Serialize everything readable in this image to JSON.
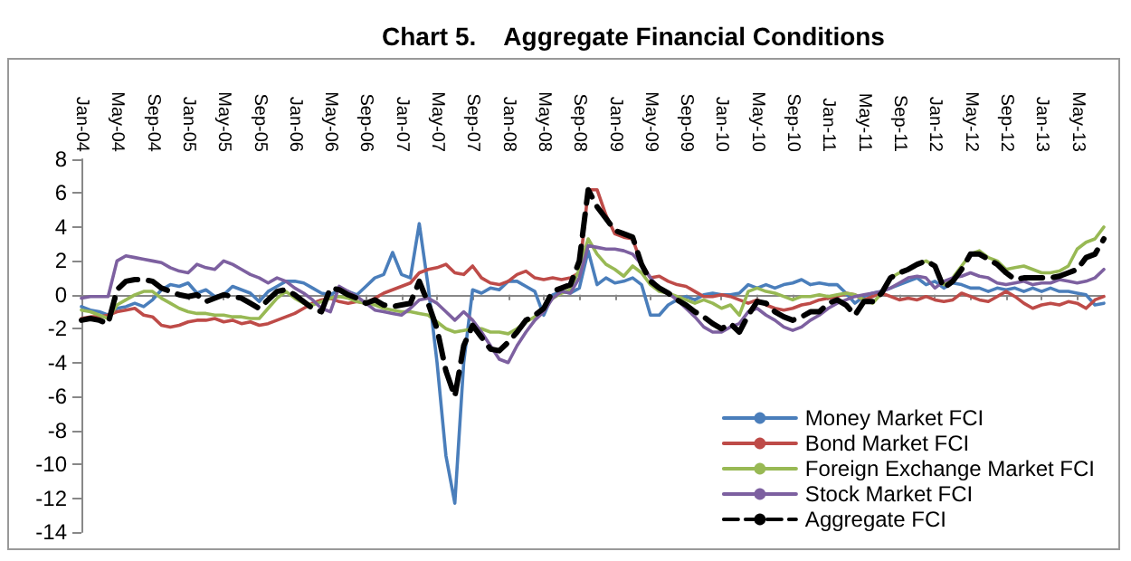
{
  "chart_data": {
    "type": "line",
    "title": "Chart 5.    Aggregate Financial Conditions",
    "categories": [
      "Jan-04",
      null,
      null,
      null,
      "May-04",
      null,
      null,
      null,
      "Sep-04",
      null,
      null,
      null,
      "Jan-05",
      null,
      null,
      null,
      "May-05",
      null,
      null,
      null,
      "Sep-05",
      null,
      null,
      null,
      "Jan-06",
      null,
      null,
      null,
      "May-06",
      null,
      null,
      null,
      "Sep-06",
      null,
      null,
      null,
      "Jan-07",
      null,
      null,
      null,
      "May-07",
      null,
      null,
      null,
      "Sep-07",
      null,
      null,
      null,
      "Jan-08",
      null,
      null,
      null,
      "May-08",
      null,
      null,
      null,
      "Sep-08",
      null,
      null,
      null,
      "Jan-09",
      null,
      null,
      null,
      "May-09",
      null,
      null,
      null,
      "Sep-09",
      null,
      null,
      null,
      "Jan-10",
      null,
      null,
      null,
      "May-10",
      null,
      null,
      null,
      "Sep-10",
      null,
      null,
      null,
      "Jan-11",
      null,
      null,
      null,
      "May-11",
      null,
      null,
      null,
      "Sep-11",
      null,
      null,
      null,
      "Jan-12",
      null,
      null,
      null,
      "May-12",
      null,
      null,
      null,
      "Sep-12",
      null,
      null,
      null,
      "Jan-13",
      null,
      null,
      null,
      "May-13",
      null,
      null,
      null
    ],
    "series": [
      {
        "name": "Money Market FCI",
        "color": "#4a7ebb",
        "values": [
          -0.7,
          -0.9,
          -1.0,
          -1.2,
          -0.8,
          -0.7,
          -0.5,
          -0.7,
          -0.3,
          0.3,
          0.6,
          0.5,
          0.7,
          0.1,
          0.3,
          -0.1,
          0,
          0.5,
          0.3,
          0.1,
          -0.4,
          0.2,
          0.5,
          0.8,
          0.8,
          0.7,
          0.4,
          0.1,
          0,
          0.3,
          0.2,
          0,
          0.5,
          1.0,
          1.2,
          2.5,
          1.2,
          1.0,
          4.2,
          0.5,
          -4,
          -9.5,
          -12.3,
          -4,
          0.3,
          0.1,
          0.4,
          0.3,
          0.8,
          0.8,
          0.5,
          0.2,
          -1.2,
          0,
          0.2,
          0.1,
          0.4,
          2.6,
          0.6,
          1.0,
          0.7,
          0.8,
          1.0,
          0.6,
          -1.2,
          -1.2,
          -0.6,
          -0.3,
          -0.1,
          -0.3,
          0,
          0.1,
          0,
          0,
          0.1,
          0.6,
          0.4,
          0.6,
          0.4,
          0.6,
          0.7,
          0.9,
          0.6,
          0.7,
          0.6,
          0.6,
          0.1,
          -0.5,
          -0.1,
          0.1,
          0.2,
          0.4,
          0.6,
          0.8,
          1.0,
          0.6,
          0.8,
          0.4,
          0.7,
          0.6,
          0.4,
          0.4,
          0.2,
          0.4,
          0.3,
          0.4,
          0.2,
          0.4,
          0.2,
          0.4,
          0.2,
          0.2,
          0.1,
          0,
          -0.6,
          -0.5
        ]
      },
      {
        "name": "Bond Market FCI",
        "color": "#be4b48",
        "values": [
          -1.4,
          -1.3,
          -1.3,
          -1.2,
          -1.0,
          -0.9,
          -0.8,
          -1.2,
          -1.3,
          -1.8,
          -1.9,
          -1.8,
          -1.6,
          -1.5,
          -1.5,
          -1.4,
          -1.6,
          -1.5,
          -1.7,
          -1.6,
          -1.8,
          -1.7,
          -1.5,
          -1.3,
          -1.1,
          -0.8,
          -0.5,
          -0.3,
          -0.2,
          -0.4,
          -0.5,
          -0.4,
          -0.5,
          -0.2,
          0.1,
          0.3,
          0.5,
          0.7,
          1.3,
          1.5,
          1.6,
          1.8,
          1.3,
          1.2,
          1.7,
          1.0,
          0.7,
          0.6,
          0.8,
          1.2,
          1.4,
          1.0,
          0.9,
          1.0,
          0.9,
          1.0,
          1.3,
          6.2,
          6.2,
          4.7,
          3.6,
          3.4,
          3.3,
          1.8,
          1.0,
          1.1,
          0.8,
          0.6,
          0.5,
          0.2,
          -0.1,
          -0.1,
          0,
          -0.1,
          -0.3,
          -0.5,
          -0.3,
          -0.6,
          -0.8,
          -0.9,
          -0.8,
          -0.6,
          -0.5,
          -0.3,
          -0.2,
          -0.1,
          0.1,
          0,
          -0.3,
          -0.1,
          0.1,
          -0.1,
          -0.3,
          -0.2,
          -0.3,
          -0.1,
          -0.3,
          -0.4,
          -0.3,
          0.1,
          -0.1,
          -0.3,
          -0.4,
          -0.1,
          0.2,
          -0.1,
          -0.5,
          -0.8,
          -0.6,
          -0.5,
          -0.6,
          -0.4,
          -0.5,
          -0.8,
          -0.3,
          -0.1
        ]
      },
      {
        "name": "Foreign Exchange Market FCI",
        "color": "#98b954",
        "values": [
          -0.9,
          -1.0,
          -1.2,
          -1.4,
          -0.6,
          -0.3,
          0,
          0.2,
          0.2,
          -0.2,
          -0.5,
          -0.8,
          -1.0,
          -1.1,
          -1.1,
          -1.2,
          -1.2,
          -1.3,
          -1.3,
          -1.4,
          -1.4,
          -0.8,
          -0.2,
          0.2,
          -0.2,
          -0.5,
          -0.6,
          -0.4,
          -0.2,
          -0.1,
          -0.2,
          -0.4,
          -0.5,
          -0.6,
          -0.8,
          -0.9,
          -1.0,
          -1.0,
          -1.1,
          -1.2,
          -1.6,
          -2.0,
          -2.2,
          -2.1,
          -2.0,
          -2.0,
          -2.2,
          -2.2,
          -2.3,
          -2.0,
          -1.6,
          -1.3,
          -0.8,
          -0.2,
          0.1,
          0.3,
          1.5,
          3.3,
          2.4,
          1.8,
          1.5,
          1.1,
          1.7,
          1.3,
          0.6,
          0.2,
          0.1,
          -0.1,
          -0.3,
          -0.5,
          -0.3,
          -0.5,
          -0.8,
          -0.6,
          -1.2,
          0.2,
          0.4,
          0.2,
          0.1,
          -0.1,
          -0.3,
          -0.1,
          -0.1,
          0,
          -0.1,
          0,
          0.1,
          0,
          -0.3,
          -0.5,
          0.1,
          1.0,
          1.3,
          1.5,
          1.8,
          2.0,
          1.7,
          0.6,
          1.0,
          1.7,
          2.4,
          2.6,
          2.2,
          2.0,
          1.5,
          1.6,
          1.7,
          1.5,
          1.3,
          1.3,
          1.4,
          1.7,
          2.7,
          3.1,
          3.3,
          4.0
        ]
      },
      {
        "name": "Stock Market FCI",
        "color": "#7d60a0",
        "values": [
          -0.2,
          -0.1,
          -0.1,
          -0.1,
          2.0,
          2.3,
          2.2,
          2.1,
          2.0,
          1.9,
          1.6,
          1.4,
          1.3,
          1.8,
          1.6,
          1.5,
          2.0,
          1.8,
          1.5,
          1.2,
          1.0,
          0.7,
          1.0,
          0.8,
          0.4,
          0.1,
          -0.3,
          -0.8,
          -1.0,
          0.5,
          0.2,
          -0.1,
          -0.5,
          -0.9,
          -1.0,
          -1.1,
          -1.2,
          -0.8,
          -0.3,
          -0.2,
          -0.5,
          -1.0,
          -1.5,
          -1.0,
          -1.5,
          -2.2,
          -3.0,
          -3.8,
          -4.0,
          -3.0,
          -2.2,
          -1.5,
          -1.0,
          -0.2,
          0.2,
          0.1,
          1.0,
          2.9,
          2.8,
          2.7,
          2.7,
          2.6,
          2.4,
          1.8,
          1.0,
          0.4,
          0.1,
          -0.3,
          -0.8,
          -1.3,
          -1.9,
          -2.2,
          -2.2,
          -1.9,
          -1.7,
          -1.0,
          -0.8,
          -1.2,
          -1.5,
          -1.9,
          -2.1,
          -1.9,
          -1.5,
          -1.2,
          -0.8,
          -0.5,
          -0.3,
          -0.1,
          0,
          0.1,
          0.2,
          0.4,
          0.7,
          1.0,
          1.1,
          1.0,
          0.4,
          0.8,
          1.0,
          1.1,
          1.3,
          1.1,
          1.0,
          0.7,
          0.6,
          0.7,
          0.8,
          0.6,
          0.7,
          0.7,
          0.9,
          0.8,
          0.7,
          0.8,
          1.0,
          1.5
        ]
      },
      {
        "name": "Aggregate FCI",
        "color": "#000000",
        "line_style": "dashed",
        "values": [
          -1.5,
          -1.4,
          -1.5,
          -1.7,
          0.3,
          0.8,
          0.9,
          0.9,
          0.8,
          0.4,
          0.2,
          0,
          -0.1,
          0,
          -0.4,
          -0.2,
          0,
          -0.1,
          -0.2,
          -0.5,
          -0.8,
          -0.3,
          0.2,
          0.3,
          0,
          -0.4,
          -0.8,
          -1.0,
          0.4,
          0.3,
          0,
          -0.2,
          -0.5,
          -0.3,
          -0.6,
          -0.7,
          -0.6,
          -0.5,
          0.8,
          -0.5,
          -2,
          -4.5,
          -6,
          -3,
          -1.8,
          -2.5,
          -3.2,
          -3.3,
          -2.8,
          -2.2,
          -1.5,
          -1.2,
          -0.8,
          0.2,
          0.4,
          0.6,
          2.0,
          6.2,
          5.2,
          4.5,
          3.8,
          3.6,
          3.4,
          1.8,
          0.8,
          0.4,
          0.1,
          -0.3,
          -0.6,
          -1.0,
          -1.3,
          -1.7,
          -2.0,
          -1.7,
          -2.2,
          -1.2,
          -0.4,
          -0.5,
          -1.0,
          -1.3,
          -1.5,
          -1.3,
          -1.0,
          -1.0,
          -0.5,
          -0.3,
          -0.6,
          -1.2,
          -0.4,
          -0.4,
          0.1,
          1.0,
          1.3,
          1.5,
          1.8,
          2.0,
          1.7,
          0.4,
          0.8,
          1.5,
          2.4,
          2.4,
          2.1,
          1.8,
          1.3,
          0.9,
          1.0,
          1.0,
          1.0,
          1.0,
          1.1,
          1.3,
          1.5,
          2.2,
          2.4,
          3.3
        ]
      }
    ],
    "ylim": [
      -14,
      8
    ],
    "yticks": [
      -14,
      -12,
      -10,
      -8,
      -6,
      -4,
      -2,
      0,
      2,
      4,
      6,
      8
    ],
    "legend": "bottom right"
  }
}
